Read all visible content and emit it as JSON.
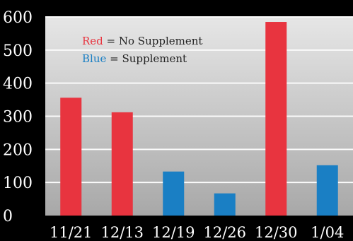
{
  "chart_data": {
    "type": "bar",
    "categories": [
      "11/21",
      "12/13",
      "12/19",
      "12/26",
      "12/30",
      "1/04"
    ],
    "values": [
      356,
      312,
      133,
      67,
      585,
      152
    ],
    "bar_colors": [
      "#e8343f",
      "#e8343f",
      "#1a7fc4",
      "#1a7fc4",
      "#e8343f",
      "#1a7fc4"
    ],
    "ylim": [
      0,
      600
    ],
    "yticks": [
      0,
      100,
      200,
      300,
      400,
      500,
      600
    ],
    "grid": true,
    "title": "",
    "xlabel": "",
    "ylabel": "",
    "legend_position": "top-left",
    "legend": [
      {
        "key": "Red",
        "rest": " = No Supplement",
        "color": "#e8343f"
      },
      {
        "key": "Blue",
        "rest": " = Supplement",
        "color": "#1a7fc4"
      }
    ]
  },
  "colors": {
    "background": "#000000",
    "plot_top": "#e6e6e6",
    "plot_bottom": "#a8a8a8",
    "gridline": "#fafafa",
    "axis_text": "#ffffff",
    "legend_text": "#222222"
  }
}
